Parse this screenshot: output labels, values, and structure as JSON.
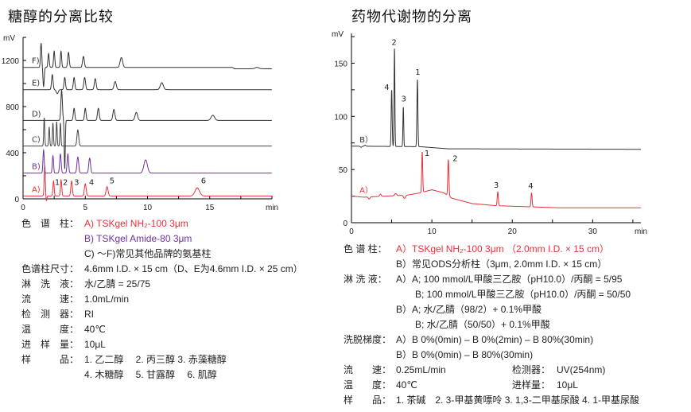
{
  "colors": {
    "red": "#e8303a",
    "purple": "#7030a0",
    "black": "#333333",
    "grey": "#444444"
  },
  "left": {
    "title": "糖醇的分离比较",
    "conditions": [
      {
        "label": "色　谱　柱：",
        "value": "A) TSKgel NH₂-100 3μm",
        "color": "#e8303a"
      },
      {
        "label": "",
        "value": "B) TSKgel Amide-80 3μm",
        "color": "#7030a0"
      },
      {
        "label": "",
        "value": "C) ～F)常见其他品牌的氨基柱",
        "color": "#222222"
      },
      {
        "label": "色谱柱尺寸：",
        "value": "4.6mm I.D. × 15 cm（D、E为4.6mm I.D. × 25 cm）",
        "color": "#222222"
      },
      {
        "label": "淋　洗　液：",
        "value": "水/乙腈 = 25/75",
        "color": "#222222"
      },
      {
        "label": "流　　　速：",
        "value": "1.0mL/min",
        "color": "#222222"
      },
      {
        "label": "检　测　器：",
        "value": "RI",
        "color": "#222222"
      },
      {
        "label": "温　　　度：",
        "value": "40℃",
        "color": "#222222"
      },
      {
        "label": "进　样　量：",
        "value": "10μL",
        "color": "#222222"
      },
      {
        "label": "样　　　品：",
        "value": "1. 乙二醇　 2. 丙三醇  3. 赤藻糖醇",
        "color": "#222222"
      },
      {
        "label": "",
        "value": "4. 木糖醇　 5. 甘露醇　 6. 肌醇",
        "color": "#222222"
      }
    ]
  },
  "right": {
    "title": "药物代谢物的分离",
    "conditions": [
      {
        "label": "色 谱 柱：",
        "value": "A）TSKgel NH₂-100 3μm （2.0mm I.D. × 15 cm）",
        "color": "#e8303a"
      },
      {
        "label": "",
        "value": "B）常见ODS分析柱（3μm, 2.0mm I.D. × 15 cm）",
        "color": "#222222"
      },
      {
        "label": "淋 洗 液：",
        "value": "A）A; 100 mmol/L甲酸三乙胺（pH10.0）/丙酮 = 5/95",
        "color": "#222222"
      },
      {
        "label": "",
        "value": "　　B; 100 mmol/L甲酸三乙胺（pH10.0）/丙酮 = 50/50",
        "color": "#222222"
      },
      {
        "label": "",
        "value": "B）A; 水/乙腈（98/2）+ 0.1%甲酸",
        "color": "#222222"
      },
      {
        "label": "",
        "value": "　　B; 水/乙腈（50/50）+ 0.1%甲酸",
        "color": "#222222"
      },
      {
        "label": "洗脱梯度：",
        "value": "A）B 0%(0min) – B 0%(2min) – B 80%(30min)",
        "color": "#222222"
      },
      {
        "label": "",
        "value": "B）B 0%(0min) – B 80%(30min)",
        "color": "#222222"
      },
      {
        "label": "流　　速：",
        "value": "0.25mL/min",
        "label2": "检测器：",
        "value2": "UV(254nm)",
        "color": "#222222"
      },
      {
        "label": "温　　度：",
        "value": "40℃",
        "label2": "进样量：",
        "value2": "10μL",
        "color": "#222222"
      },
      {
        "label": "样　　品：",
        "value": "1. 茶碱　2. 3-甲基黄嘌呤  3. 1,3-二甲基尿酸  4. 1-甲基尿酸",
        "color": "#222222"
      }
    ]
  },
  "chart_data": [
    {
      "type": "line",
      "xlabel": "min",
      "ylabel": "mV",
      "xlim": [
        0,
        20
      ],
      "ylim": [
        0,
        1400
      ],
      "xticks": [
        0,
        5,
        10,
        15
      ],
      "yticks": [
        0,
        400,
        800,
        1200
      ],
      "series": [
        {
          "name": "A)",
          "color": "#e8303a",
          "baseline": [
            [
              0,
              25
            ],
            [
              20,
              25
            ]
          ],
          "peaks": [
            [
              1.75,
              260,
              0.05
            ],
            [
              1.85,
              -60,
              0.05
            ],
            [
              2.45,
              130,
              0.05
            ],
            [
              3.06,
              140,
              0.05
            ],
            [
              3.9,
              130,
              0.06
            ],
            [
              5.0,
              105,
              0.07
            ],
            [
              6.75,
              80,
              0.08
            ],
            [
              14.0,
              70,
              0.18
            ]
          ],
          "peak_labels": [
            [
              "1",
              2.75,
              120
            ],
            [
              "2",
              3.4,
              120
            ],
            [
              "3",
              4.3,
              120
            ],
            [
              "4",
              5.5,
              120
            ],
            [
              "5",
              7.15,
              135
            ],
            [
              "6",
              14.5,
              135
            ]
          ]
        },
        {
          "name": "B)",
          "color": "#7030a0",
          "baseline": [
            [
              0,
              223
            ],
            [
              20,
              223
            ]
          ],
          "peaks": [
            [
              1.65,
              200,
              0.05
            ],
            [
              2.4,
              150,
              0.05
            ],
            [
              3.0,
              165,
              0.06
            ],
            [
              3.6,
              165,
              0.06
            ],
            [
              4.4,
              140,
              0.07
            ],
            [
              5.35,
              130,
              0.07
            ],
            [
              9.85,
              115,
              0.14
            ]
          ]
        },
        {
          "name": "C)",
          "color": "#444444",
          "baseline": [
            [
              0,
              458
            ],
            [
              20,
              458
            ]
          ],
          "peaks": [
            [
              1.7,
              245,
              0.04
            ],
            [
              2.1,
              165,
              0.04
            ],
            [
              2.4,
              200,
              0.04
            ],
            [
              2.7,
              210,
              0.04
            ],
            [
              3.0,
              200,
              0.04
            ],
            [
              4.4,
              140,
              0.07
            ]
          ]
        },
        {
          "name": "D)",
          "color": "#333333",
          "baseline": [
            [
              0,
              680
            ],
            [
              20,
              680
            ]
          ],
          "peaks": [
            [
              3.1,
              260,
              0.06
            ],
            [
              3.35,
              -420,
              0.04
            ],
            [
              4.1,
              105,
              0.06
            ],
            [
              5.0,
              105,
              0.06
            ],
            [
              6.05,
              105,
              0.07
            ],
            [
              7.3,
              95,
              0.08
            ],
            [
              9.1,
              70,
              0.1
            ],
            [
              15.25,
              45,
              0.14
            ]
          ]
        },
        {
          "name": "E)",
          "color": "#333333",
          "baseline": [
            [
              0,
              947
            ],
            [
              20,
              947
            ]
          ],
          "peaks": [
            [
              2.35,
              130,
              0.06
            ],
            [
              2.75,
              -35,
              0.08
            ],
            [
              3.35,
              105,
              0.06
            ],
            [
              4.1,
              105,
              0.06
            ],
            [
              4.95,
              105,
              0.07
            ],
            [
              5.8,
              95,
              0.07
            ],
            [
              7.4,
              70,
              0.09
            ],
            [
              11.15,
              60,
              0.12
            ]
          ]
        },
        {
          "name": "F)",
          "color": "#333333",
          "baseline": [
            [
              0,
              1140
            ],
            [
              16.8,
              1140
            ],
            [
              17.0,
              1128
            ],
            [
              20,
              1128
            ]
          ],
          "peaks": [
            [
              1.45,
              210,
              0.05
            ],
            [
              1.65,
              -165,
              0.05
            ],
            [
              2.05,
              120,
              0.05
            ],
            [
              2.5,
              140,
              0.05
            ],
            [
              3.05,
              140,
              0.05
            ],
            [
              3.65,
              130,
              0.06
            ],
            [
              4.85,
              95,
              0.07
            ],
            [
              7.9,
              85,
              0.1
            ],
            [
              18.8,
              12,
              0.15
            ]
          ]
        }
      ]
    },
    {
      "type": "line",
      "xlabel": "min",
      "ylabel": "mV",
      "xlim": [
        0,
        36
      ],
      "ylim": [
        0,
        178
      ],
      "xticks": [
        0,
        10,
        20,
        30
      ],
      "yticks": [
        0,
        50,
        100,
        150
      ],
      "series": [
        {
          "name": "A）",
          "color": "#e8303a",
          "baseline": [
            [
              0,
              25
            ],
            [
              1.5,
              24
            ],
            [
              7,
              26
            ],
            [
              8.5,
              28
            ],
            [
              10,
              31
            ],
            [
              11.5,
              28
            ],
            [
              12.5,
              23
            ],
            [
              15,
              18
            ],
            [
              18,
              16
            ],
            [
              22,
              15
            ],
            [
              26,
              14
            ],
            [
              36,
              14
            ]
          ],
          "peaks": [
            [
              2.2,
              -2,
              0.1
            ],
            [
              3.6,
              2,
              0.1
            ],
            [
              5.5,
              2,
              0.12
            ],
            [
              6.6,
              -3,
              0.12
            ],
            [
              8.8,
              38,
              0.06
            ],
            [
              12.05,
              34,
              0.07
            ],
            [
              18.2,
              13,
              0.07
            ],
            [
              22.4,
              13,
              0.07
            ]
          ],
          "peak_labels": [
            [
              "1",
              9.4,
              63
            ],
            [
              "2",
              12.9,
              58
            ],
            [
              "3",
              18.0,
              33
            ],
            [
              "4",
              22.3,
              32
            ]
          ]
        },
        {
          "name": "B）",
          "color": "#333333",
          "baseline": [
            [
              0,
              72
            ],
            [
              8.5,
              71.5
            ],
            [
              12,
              69.5
            ],
            [
              36,
              69
            ]
          ],
          "peaks": [
            [
              1.2,
              -1,
              0.1
            ],
            [
              1.7,
              1,
              0.1
            ],
            [
              5.0,
              53,
              0.06
            ],
            [
              5.35,
              92,
              0.05
            ],
            [
              6.45,
              37,
              0.05
            ],
            [
              8.2,
              63,
              0.06
            ]
          ],
          "peak_labels": [
            [
              "4",
              4.4,
              125
            ],
            [
              "2",
              5.3,
              167
            ],
            [
              "3",
              6.5,
              114
            ],
            [
              "1",
              8.25,
              139
            ]
          ]
        }
      ]
    }
  ]
}
